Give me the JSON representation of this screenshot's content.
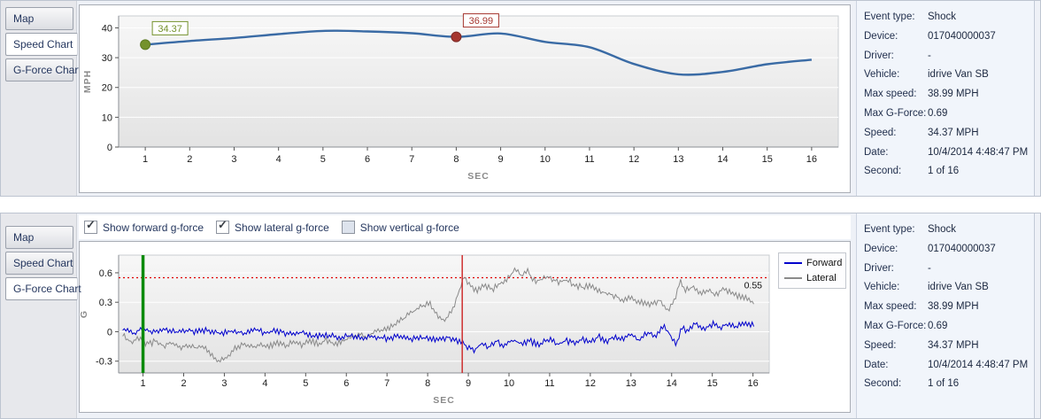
{
  "panels": {
    "top": {
      "tabs": [
        {
          "label": "Map"
        },
        {
          "label": "Speed Chart"
        },
        {
          "label": "G-Force Chart"
        }
      ],
      "selected_tab": "Speed Chart"
    },
    "bottom": {
      "tabs": [
        {
          "label": "Map"
        },
        {
          "label": "Speed Chart"
        },
        {
          "label": "G-Force Chart"
        }
      ],
      "selected_tab": "G-Force Chart",
      "toggles": [
        {
          "label": "Show forward g-force",
          "checked": true
        },
        {
          "label": "Show lateral g-force",
          "checked": true
        },
        {
          "label": "Show vertical g-force",
          "checked": false
        }
      ]
    }
  },
  "event_info": {
    "rows": [
      {
        "label": "Event type:",
        "value": "Shock"
      },
      {
        "label": "Device:",
        "value": "017040000037"
      },
      {
        "label": "Driver:",
        "value": "-"
      },
      {
        "label": "Vehicle:",
        "value": "idrive Van SB"
      },
      {
        "label": "Max speed:",
        "value": "38.99 MPH"
      },
      {
        "label": "Max G-Force:",
        "value": "0.69"
      },
      {
        "label": "Speed:",
        "value": "34.37 MPH"
      },
      {
        "label": "Date:",
        "value": "10/4/2014 4:48:47 PM"
      },
      {
        "label": "Second:",
        "value": "1 of 16"
      }
    ]
  },
  "chart_data": [
    {
      "type": "line",
      "title": "Speed Chart",
      "xlabel": "SEC",
      "ylabel": "MPH",
      "x": [
        1,
        2,
        3,
        4,
        5,
        6,
        7,
        8,
        9,
        10,
        11,
        12,
        13,
        14,
        15,
        16
      ],
      "values": [
        34.37,
        35.6,
        36.6,
        37.9,
        38.99,
        38.8,
        38.2,
        36.99,
        38.1,
        35.3,
        33.5,
        27.9,
        24.4,
        25.2,
        27.8,
        29.3
      ],
      "xlim": [
        0.4,
        16.6
      ],
      "ylim": [
        0,
        44
      ],
      "yticks": [
        0,
        10,
        20,
        30,
        40
      ],
      "xticks": [
        1,
        2,
        3,
        4,
        5,
        6,
        7,
        8,
        9,
        10,
        11,
        12,
        13,
        14,
        15,
        16
      ],
      "line_color": "#3a6ba5",
      "markers": [
        {
          "x": 1,
          "y": 34.37,
          "label": "34.37",
          "color": "#74922c",
          "edge": "#5c7a22"
        },
        {
          "x": 8,
          "y": 36.99,
          "label": "36.99",
          "color": "#a5362f",
          "edge": "#7d2a26"
        }
      ]
    },
    {
      "type": "line",
      "title": "G-Force Chart",
      "xlabel": "SEC",
      "ylabel": "G",
      "xlim": [
        0.4,
        16.4
      ],
      "ylim": [
        -0.42,
        0.78
      ],
      "yticks": [
        -0.3,
        0,
        0.3,
        0.6
      ],
      "xticks": [
        1,
        2,
        3,
        4,
        5,
        6,
        7,
        8,
        9,
        10,
        11,
        12,
        13,
        14,
        15,
        16
      ],
      "threshold": {
        "y": 0.55,
        "label": "0.55",
        "color": "#e00000"
      },
      "vlines": [
        {
          "x": 1,
          "color": "#0a8a0a",
          "width": 3.5
        },
        {
          "x": 8.85,
          "color": "#cc2222",
          "width": 1.4
        }
      ],
      "legend_position": "right",
      "series": [
        {
          "name": "Lateral",
          "color": "#8a8a8a",
          "noise": 0.02,
          "seed": 7,
          "keyframes": [
            [
              0.5,
              -0.04
            ],
            [
              0.7,
              -0.1
            ],
            [
              0.9,
              -0.07
            ],
            [
              1.1,
              -0.13
            ],
            [
              1.3,
              -0.1
            ],
            [
              1.5,
              -0.14
            ],
            [
              1.7,
              -0.12
            ],
            [
              1.9,
              -0.16
            ],
            [
              2.1,
              -0.13
            ],
            [
              2.3,
              -0.17
            ],
            [
              2.5,
              -0.15
            ],
            [
              2.7,
              -0.24
            ],
            [
              2.85,
              -0.29
            ],
            [
              3.0,
              -0.28
            ],
            [
              3.15,
              -0.22
            ],
            [
              3.3,
              -0.16
            ],
            [
              3.5,
              -0.12
            ],
            [
              3.7,
              -0.16
            ],
            [
              3.9,
              -0.13
            ],
            [
              4.1,
              -0.15
            ],
            [
              4.3,
              -0.11
            ],
            [
              4.5,
              -0.14
            ],
            [
              4.7,
              -0.11
            ],
            [
              4.9,
              -0.13
            ],
            [
              5.1,
              -0.09
            ],
            [
              5.3,
              -0.12
            ],
            [
              5.5,
              -0.09
            ],
            [
              5.7,
              -0.12
            ],
            [
              5.9,
              -0.1
            ],
            [
              6.1,
              -0.07
            ],
            [
              6.3,
              -0.03
            ],
            [
              6.5,
              -0.05
            ],
            [
              6.7,
              0.0
            ],
            [
              6.9,
              0.02
            ],
            [
              7.1,
              0.05
            ],
            [
              7.3,
              0.1
            ],
            [
              7.5,
              0.16
            ],
            [
              7.7,
              0.22
            ],
            [
              7.9,
              0.26
            ],
            [
              8.05,
              0.3
            ],
            [
              8.2,
              0.18
            ],
            [
              8.4,
              0.12
            ],
            [
              8.6,
              0.2
            ],
            [
              8.8,
              0.45
            ],
            [
              8.9,
              0.55
            ],
            [
              9.0,
              0.48
            ],
            [
              9.2,
              0.42
            ],
            [
              9.4,
              0.47
            ],
            [
              9.6,
              0.43
            ],
            [
              9.8,
              0.5
            ],
            [
              10.0,
              0.55
            ],
            [
              10.15,
              0.63
            ],
            [
              10.3,
              0.57
            ],
            [
              10.45,
              0.62
            ],
            [
              10.6,
              0.52
            ],
            [
              10.8,
              0.53
            ],
            [
              11.0,
              0.56
            ],
            [
              11.2,
              0.5
            ],
            [
              11.4,
              0.53
            ],
            [
              11.6,
              0.48
            ],
            [
              11.8,
              0.45
            ],
            [
              12.0,
              0.47
            ],
            [
              12.2,
              0.42
            ],
            [
              12.5,
              0.38
            ],
            [
              12.8,
              0.33
            ],
            [
              13.0,
              0.35
            ],
            [
              13.2,
              0.3
            ],
            [
              13.5,
              0.28
            ],
            [
              13.7,
              0.32
            ],
            [
              13.9,
              0.22
            ],
            [
              14.1,
              0.35
            ],
            [
              14.2,
              0.52
            ],
            [
              14.35,
              0.42
            ],
            [
              14.5,
              0.45
            ],
            [
              14.7,
              0.38
            ],
            [
              14.9,
              0.42
            ],
            [
              15.1,
              0.38
            ],
            [
              15.3,
              0.44
            ],
            [
              15.5,
              0.38
            ],
            [
              15.7,
              0.35
            ],
            [
              15.9,
              0.33
            ],
            [
              16.0,
              0.3
            ]
          ]
        },
        {
          "name": "Forward",
          "color": "#0000cc",
          "noise": 0.02,
          "seed": 1,
          "keyframes": [
            [
              0.5,
              0.03
            ],
            [
              0.8,
              -0.02
            ],
            [
              1.0,
              0.04
            ],
            [
              1.2,
              0.0
            ],
            [
              1.5,
              0.03
            ],
            [
              1.8,
              -0.01
            ],
            [
              2.0,
              0.02
            ],
            [
              2.3,
              0.0
            ],
            [
              2.6,
              0.02
            ],
            [
              2.9,
              -0.02
            ],
            [
              3.2,
              0.01
            ],
            [
              3.5,
              -0.01
            ],
            [
              3.8,
              0.02
            ],
            [
              4.0,
              -0.02
            ],
            [
              4.3,
              0.01
            ],
            [
              4.6,
              -0.03
            ],
            [
              4.9,
              -0.01
            ],
            [
              5.2,
              -0.05
            ],
            [
              5.5,
              -0.03
            ],
            [
              5.8,
              -0.06
            ],
            [
              6.1,
              -0.04
            ],
            [
              6.4,
              -0.07
            ],
            [
              6.7,
              -0.05
            ],
            [
              7.0,
              -0.07
            ],
            [
              7.3,
              -0.05
            ],
            [
              7.6,
              -0.08
            ],
            [
              7.9,
              -0.06
            ],
            [
              8.2,
              -0.09
            ],
            [
              8.5,
              -0.06
            ],
            [
              8.8,
              -0.1
            ],
            [
              9.0,
              -0.16
            ],
            [
              9.15,
              -0.2
            ],
            [
              9.3,
              -0.12
            ],
            [
              9.5,
              -0.16
            ],
            [
              9.7,
              -0.1
            ],
            [
              9.9,
              -0.14
            ],
            [
              10.1,
              -0.08
            ],
            [
              10.3,
              -0.13
            ],
            [
              10.5,
              -0.09
            ],
            [
              10.7,
              -0.13
            ],
            [
              11.0,
              -0.08
            ],
            [
              11.2,
              -0.13
            ],
            [
              11.4,
              -0.09
            ],
            [
              11.6,
              -0.12
            ],
            [
              11.8,
              -0.07
            ],
            [
              12.0,
              -0.1
            ],
            [
              12.2,
              -0.05
            ],
            [
              12.4,
              -0.1
            ],
            [
              12.6,
              -0.04
            ],
            [
              12.8,
              -0.08
            ],
            [
              13.0,
              -0.02
            ],
            [
              13.2,
              -0.09
            ],
            [
              13.4,
              0.0
            ],
            [
              13.6,
              -0.05
            ],
            [
              13.8,
              0.06
            ],
            [
              13.95,
              -0.02
            ],
            [
              14.1,
              -0.14
            ],
            [
              14.25,
              0.05
            ],
            [
              14.4,
              0.0
            ],
            [
              14.6,
              0.09
            ],
            [
              14.8,
              0.03
            ],
            [
              15.0,
              0.08
            ],
            [
              15.2,
              0.04
            ],
            [
              15.4,
              0.09
            ],
            [
              15.6,
              0.05
            ],
            [
              15.8,
              0.1
            ],
            [
              16.0,
              0.06
            ]
          ]
        }
      ],
      "legend": [
        "Forward",
        "Lateral"
      ]
    }
  ],
  "colors": {
    "speed_line": "#3a6ba5",
    "forward": "#0000cc",
    "lateral": "#8a8a8a",
    "threshold": "#e00000",
    "current_second_line": "#0a8a0a",
    "event_line": "#cc2222",
    "tab_text": "#24365e",
    "info_text": "#22304e"
  }
}
